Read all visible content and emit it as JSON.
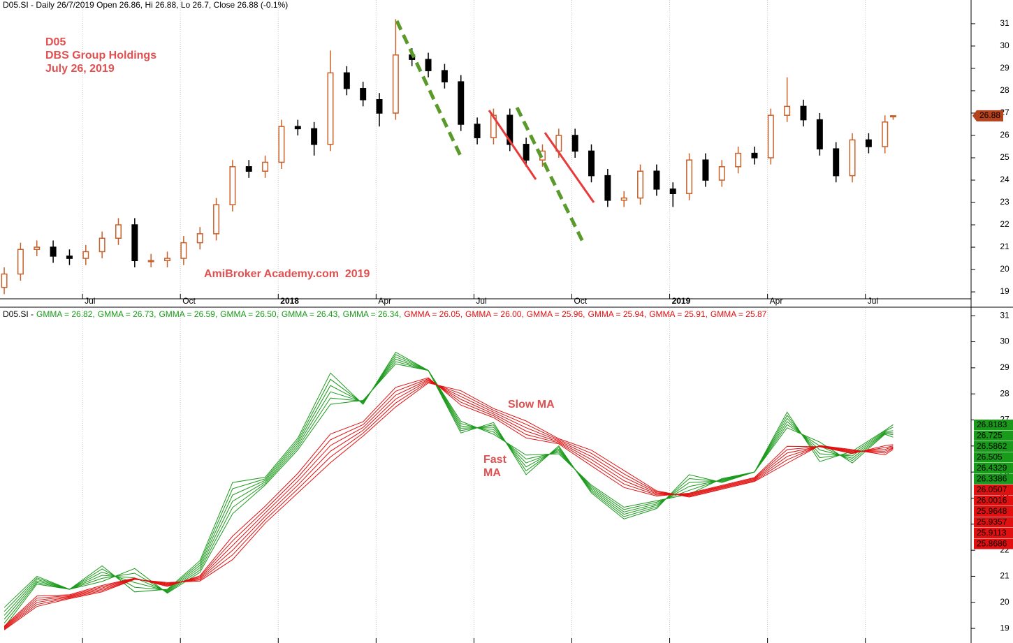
{
  "chart_data": [
    {
      "type": "candlestick",
      "title": "D05.SI - Daily 26/7/2019 Open 26.86, Hi 26.88, Lo 26.7, Close 26.88 (-0.1%)",
      "annotations": [
        "D05",
        "DBS Group Holdings",
        "July 26, 2019",
        "AmiBroker Academy.com  2019"
      ],
      "x": [
        3.6,
        4.1,
        4.6,
        5.1,
        5.6,
        6.1,
        6.6,
        7.1,
        7.6,
        8.1,
        8.6,
        9.1,
        9.6,
        10.1,
        10.6,
        11.1,
        11.6,
        12.1,
        12.6,
        13.1,
        13.6,
        14.1,
        14.6,
        15.1,
        15.6,
        16.1,
        16.6,
        17.1,
        17.6,
        18.1,
        18.6,
        19.1,
        19.6,
        20.1,
        20.6,
        21.1,
        21.6,
        22.1,
        22.6,
        23.1,
        23.6,
        24.1,
        24.6,
        25.1,
        25.6,
        26.1,
        26.6,
        27.1,
        27.6,
        28.1,
        28.6,
        29.1,
        29.6,
        30.1,
        30.6,
        30.85
      ],
      "open": [
        19.2,
        19.8,
        20.9,
        21.0,
        20.6,
        20.5,
        20.8,
        21.4,
        22.0,
        20.4,
        20.4,
        20.5,
        21.2,
        21.6,
        22.9,
        24.6,
        24.4,
        24.8,
        26.4,
        26.3,
        25.6,
        28.8,
        28.1,
        27.6,
        27.0,
        29.6,
        29.4,
        28.9,
        28.4,
        26.5,
        25.9,
        26.9,
        25.6,
        24.9,
        25.3,
        26.0,
        25.3,
        24.2,
        23.1,
        23.2,
        24.4,
        23.6,
        23.4,
        24.9,
        24.0,
        24.6,
        25.2,
        25.0,
        26.9,
        27.3,
        26.7,
        25.4,
        24.2,
        25.8,
        25.5,
        26.86
      ],
      "high": [
        20.1,
        21.2,
        21.3,
        21.3,
        20.9,
        21.1,
        21.7,
        22.3,
        22.3,
        20.7,
        20.8,
        21.5,
        21.9,
        23.2,
        24.9,
        24.9,
        25.1,
        26.7,
        26.7,
        26.6,
        29.8,
        29.1,
        28.4,
        27.9,
        31.2,
        29.9,
        29.7,
        29.2,
        28.7,
        26.8,
        27.2,
        27.2,
        25.9,
        25.6,
        26.3,
        26.3,
        25.6,
        24.5,
        23.5,
        24.7,
        24.7,
        23.9,
        25.2,
        25.2,
        24.9,
        25.5,
        25.5,
        27.2,
        28.6,
        27.6,
        27.0,
        25.7,
        26.1,
        26.1,
        26.9,
        26.88
      ],
      "low": [
        18.9,
        19.5,
        20.6,
        20.3,
        20.2,
        20.2,
        20.5,
        21.1,
        20.1,
        20.1,
        20.1,
        20.2,
        20.9,
        21.3,
        22.6,
        24.1,
        24.1,
        24.5,
        26.0,
        25.1,
        25.3,
        27.8,
        27.3,
        26.4,
        26.7,
        29.1,
        28.6,
        28.1,
        26.2,
        25.6,
        25.6,
        25.3,
        24.6,
        24.6,
        25.0,
        25.0,
        23.9,
        22.8,
        22.8,
        22.9,
        23.3,
        22.8,
        23.1,
        23.7,
        23.7,
        24.3,
        24.7,
        24.7,
        26.6,
        26.4,
        25.1,
        23.9,
        23.9,
        25.2,
        25.2,
        26.7
      ],
      "close": [
        19.8,
        20.9,
        21.0,
        20.6,
        20.5,
        20.8,
        21.4,
        22.0,
        20.4,
        20.4,
        20.5,
        21.2,
        21.6,
        22.9,
        24.6,
        24.4,
        24.8,
        26.4,
        26.3,
        25.6,
        28.8,
        28.1,
        27.6,
        27.0,
        29.6,
        29.4,
        28.9,
        28.4,
        26.5,
        25.9,
        26.9,
        25.6,
        24.9,
        25.3,
        26.0,
        25.3,
        24.2,
        23.1,
        23.2,
        24.4,
        23.6,
        23.4,
        24.9,
        24.0,
        24.6,
        25.2,
        25.0,
        26.9,
        27.3,
        26.7,
        25.4,
        24.2,
        25.8,
        25.5,
        26.6,
        26.88
      ],
      "up_color": "#c8602a",
      "down_color": "#000000",
      "last_color": "#b5431d",
      "xlim": [
        3.47,
        33.24
      ],
      "xticks": [
        {
          "value": 6,
          "label": "Jul"
        },
        {
          "value": 9,
          "label": "Oct"
        },
        {
          "value": 12,
          "label": "2018",
          "bold": true
        },
        {
          "value": 15,
          "label": "Apr"
        },
        {
          "value": 18,
          "label": "Jul"
        },
        {
          "value": 21,
          "label": "Oct"
        },
        {
          "value": 24,
          "label": "2019",
          "bold": true
        },
        {
          "value": 27,
          "label": "Apr"
        },
        {
          "value": 30,
          "label": "Jul"
        }
      ],
      "ylim": [
        18.69,
        32.06
      ],
      "yticks": [
        19,
        20,
        21,
        22,
        23,
        24,
        25,
        26,
        27,
        28,
        29,
        30,
        31
      ],
      "grid": "x"
    },
    {
      "type": "line",
      "title": "D05.SI -",
      "annotations": [
        "Slow MA",
        "Fast",
        "MA"
      ],
      "x": [
        3.6,
        4.6,
        5.6,
        6.6,
        7.6,
        8.6,
        9.6,
        10.6,
        11.6,
        12.6,
        13.6,
        14.6,
        15.6,
        16.6,
        17.6,
        18.6,
        19.6,
        20.6,
        21.6,
        22.6,
        23.6,
        24.6,
        25.6,
        26.6,
        27.6,
        28.6,
        29.6,
        30.6,
        30.85
      ],
      "xlim": [
        3.47,
        33.24
      ],
      "ylim": [
        18.44,
        31.3
      ],
      "yticks": [
        19,
        20,
        21,
        22,
        23,
        24,
        25,
        26,
        27,
        28,
        29,
        30,
        31
      ],
      "grid": "x",
      "series": [
        {
          "name": "GMMA = 26.82,",
          "color": "#1a9a1a",
          "values": [
            19.8,
            21.0,
            20.5,
            21.4,
            20.4,
            20.5,
            21.6,
            24.6,
            24.8,
            26.3,
            28.8,
            27.6,
            29.6,
            28.9,
            26.5,
            26.9,
            24.9,
            26.0,
            24.2,
            23.2,
            23.6,
            24.9,
            24.6,
            25.0,
            27.3,
            25.4,
            25.8,
            26.6,
            26.8183
          ]
        },
        {
          "name": "GMMA = 26.73,",
          "color": "#1a9a1a",
          "values": [
            19.65,
            20.94,
            20.5,
            21.28,
            20.58,
            20.47,
            21.51,
            24.36,
            24.74,
            26.21,
            28.56,
            27.63,
            29.51,
            28.9,
            26.59,
            26.81,
            25.05,
            25.94,
            24.26,
            23.29,
            23.66,
            24.75,
            24.63,
            25.0,
            27.18,
            25.55,
            25.71,
            26.57,
            26.725
          ]
        },
        {
          "name": "GMMA = 26.59,",
          "color": "#1a9a1a",
          "values": [
            19.5,
            20.88,
            20.5,
            21.16,
            20.76,
            20.44,
            21.42,
            24.12,
            24.68,
            26.12,
            28.32,
            27.66,
            29.42,
            28.9,
            26.68,
            26.72,
            25.2,
            25.88,
            24.32,
            23.38,
            23.72,
            24.6,
            24.66,
            25.0,
            27.06,
            25.7,
            25.62,
            26.54,
            26.5862
          ]
        },
        {
          "name": "GMMA = 26.50,",
          "color": "#1a9a1a",
          "values": [
            19.35,
            20.82,
            20.5,
            21.04,
            20.94,
            20.41,
            21.33,
            23.88,
            24.62,
            26.03,
            28.08,
            27.69,
            29.33,
            28.9,
            26.77,
            26.63,
            25.35,
            25.82,
            24.38,
            23.47,
            23.78,
            24.45,
            24.69,
            25.0,
            26.94,
            25.85,
            25.53,
            26.51,
            26.505
          ]
        },
        {
          "name": "GMMA = 26.43,",
          "color": "#1a9a1a",
          "values": [
            19.2,
            20.76,
            20.5,
            20.92,
            21.12,
            20.38,
            21.24,
            23.64,
            24.56,
            25.94,
            27.84,
            27.72,
            29.24,
            28.9,
            26.86,
            26.54,
            25.5,
            25.76,
            24.44,
            23.56,
            23.84,
            24.3,
            24.72,
            25.0,
            26.82,
            26.0,
            25.44,
            26.48,
            26.4329
          ]
        },
        {
          "name": "GMMA = 26.34,",
          "color": "#1a9a1a",
          "values": [
            19.05,
            20.7,
            20.5,
            20.8,
            21.3,
            20.35,
            21.15,
            23.4,
            24.5,
            25.85,
            27.6,
            27.75,
            29.15,
            28.9,
            26.95,
            26.45,
            25.65,
            25.7,
            24.5,
            23.65,
            23.9,
            24.15,
            24.75,
            25.0,
            26.7,
            26.15,
            25.35,
            26.45,
            26.3386
          ]
        },
        {
          "name": "GMMA = 26.05,",
          "color": "#e01010",
          "values": [
            19.09,
            20.24,
            20.29,
            20.65,
            20.93,
            20.61,
            21.02,
            22.54,
            23.69,
            24.95,
            26.46,
            26.93,
            28.25,
            28.62,
            27.57,
            27.09,
            26.31,
            26.08,
            25.24,
            24.41,
            24.08,
            24.19,
            24.49,
            24.79,
            25.99,
            25.97,
            25.71,
            26.01,
            26.0507
          ]
        },
        {
          "name": "GMMA = 26.00,",
          "color": "#e01010",
          "values": [
            19.06,
            20.16,
            20.26,
            20.6,
            20.92,
            20.64,
            20.98,
            22.36,
            23.56,
            24.8,
            26.24,
            26.82,
            28.1,
            28.58,
            27.68,
            27.16,
            26.44,
            26.12,
            25.36,
            24.54,
            24.12,
            24.16,
            24.46,
            24.76,
            25.86,
            25.98,
            25.74,
            25.94,
            26.0016
          ]
        },
        {
          "name": "GMMA = 25.96,",
          "color": "#e01010",
          "values": [
            19.03,
            20.08,
            20.23,
            20.55,
            20.91,
            20.67,
            20.94,
            22.18,
            23.43,
            24.65,
            26.02,
            26.71,
            27.95,
            28.54,
            27.79,
            27.23,
            26.57,
            26.16,
            25.48,
            24.67,
            24.16,
            24.13,
            24.43,
            24.73,
            25.73,
            25.99,
            25.77,
            25.87,
            25.9648
          ]
        },
        {
          "name": "GMMA = 25.94,",
          "color": "#e01010",
          "values": [
            19.0,
            20.0,
            20.2,
            20.5,
            20.9,
            20.7,
            20.9,
            22.0,
            23.3,
            24.5,
            25.8,
            26.6,
            27.8,
            28.5,
            27.9,
            27.3,
            26.7,
            26.2,
            25.6,
            24.8,
            24.2,
            24.1,
            24.4,
            24.7,
            25.6,
            26.0,
            25.8,
            25.8,
            25.9357
          ]
        },
        {
          "name": "GMMA = 25.91,",
          "color": "#e01010",
          "values": [
            18.97,
            19.92,
            20.17,
            20.45,
            20.89,
            20.73,
            20.86,
            21.82,
            23.17,
            24.35,
            25.58,
            26.49,
            27.65,
            28.46,
            28.01,
            27.37,
            26.83,
            26.24,
            25.72,
            24.93,
            24.24,
            24.07,
            24.37,
            24.67,
            25.47,
            26.01,
            25.83,
            25.73,
            25.9113
          ]
        },
        {
          "name": "GMMA = 25.87",
          "color": "#e01010",
          "values": [
            18.94,
            19.84,
            20.14,
            20.4,
            20.88,
            20.76,
            20.82,
            21.64,
            23.04,
            24.2,
            25.36,
            26.38,
            27.5,
            28.42,
            28.12,
            27.44,
            26.96,
            26.28,
            25.84,
            25.06,
            24.28,
            24.04,
            24.34,
            24.64,
            25.34,
            26.02,
            25.86,
            25.66,
            25.8686
          ]
        }
      ]
    }
  ]
}
